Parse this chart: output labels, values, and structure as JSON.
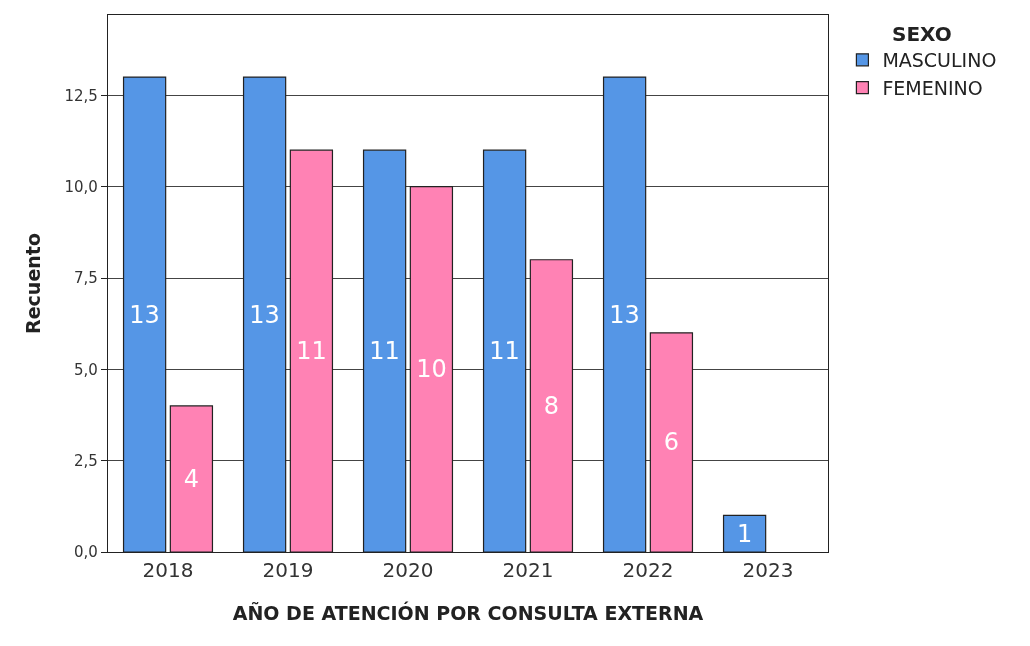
{
  "chart_data": {
    "type": "bar",
    "xlabel": "AÑO DE ATENCIÓN POR CONSULTA EXTERNA",
    "ylabel": "Recuento",
    "legend_title": "SEXO",
    "categories": [
      "2018",
      "2019",
      "2020",
      "2021",
      "2022",
      "2023"
    ],
    "series": [
      {
        "name": "MASCULINO",
        "color": "#5596e6",
        "values": [
          13,
          13,
          11,
          11,
          13,
          1
        ]
      },
      {
        "name": "FEMENINO",
        "color": "#ff82b4",
        "values": [
          4,
          11,
          10,
          8,
          6,
          null
        ]
      }
    ],
    "ylim": [
      0,
      14.7
    ],
    "yticks": [
      {
        "value": 0,
        "label": "0,0"
      },
      {
        "value": 2.5,
        "label": "2,5"
      },
      {
        "value": 5,
        "label": "5,0"
      },
      {
        "value": 7.5,
        "label": "7,5"
      },
      {
        "value": 10,
        "label": "10,0"
      },
      {
        "value": 12.5,
        "label": "12,5"
      }
    ],
    "grid": "y",
    "legend": "top right",
    "data_labels": true
  }
}
